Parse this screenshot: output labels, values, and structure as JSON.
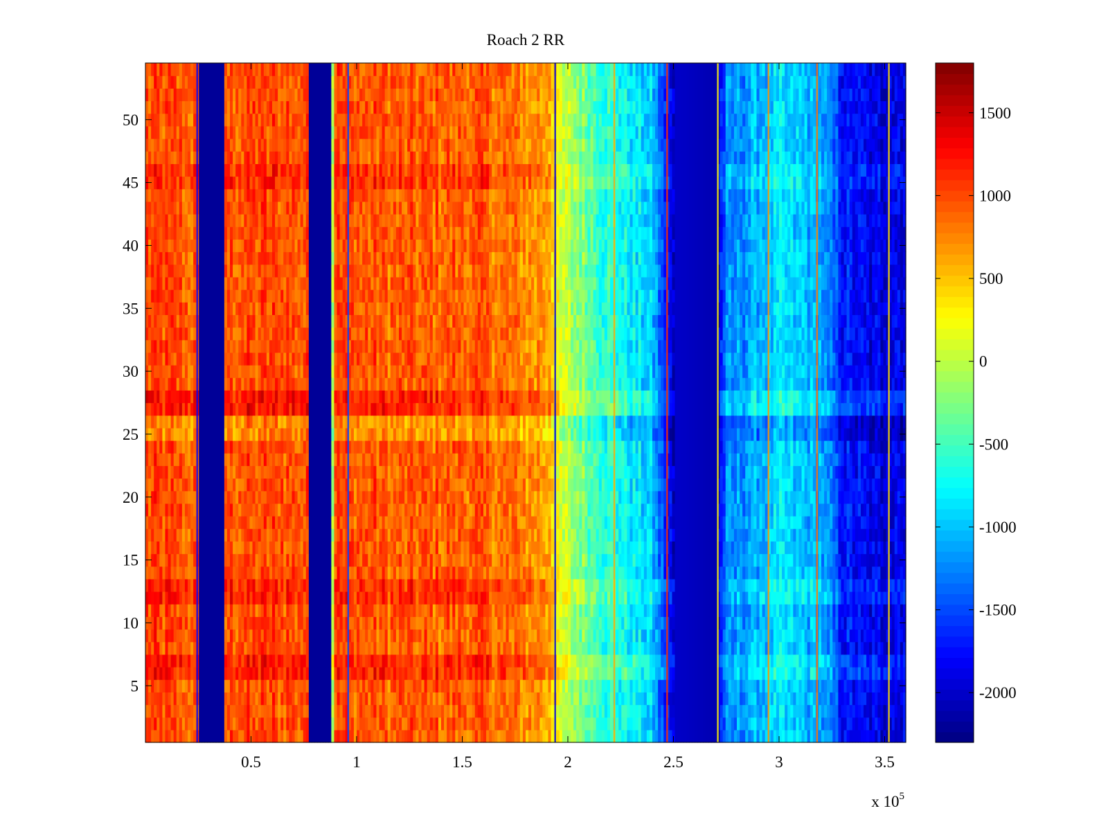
{
  "chart_data": {
    "type": "heatmap",
    "title": "Roach 2 RR",
    "xlabel": "",
    "ylabel": "",
    "x_range": [
      0,
      360000
    ],
    "y_range": [
      0.5,
      54.5
    ],
    "x_multiplier_label": "x 10",
    "x_multiplier_exponent": "5",
    "x_ticks": [
      {
        "value": 50000,
        "label": "0.5"
      },
      {
        "value": 100000,
        "label": "1"
      },
      {
        "value": 150000,
        "label": "1.5"
      },
      {
        "value": 200000,
        "label": "2"
      },
      {
        "value": 250000,
        "label": "2.5"
      },
      {
        "value": 300000,
        "label": "3"
      },
      {
        "value": 350000,
        "label": "3.5"
      }
    ],
    "y_ticks": [
      {
        "value": 5,
        "label": "5"
      },
      {
        "value": 10,
        "label": "10"
      },
      {
        "value": 15,
        "label": "15"
      },
      {
        "value": 20,
        "label": "20"
      },
      {
        "value": 25,
        "label": "25"
      },
      {
        "value": 30,
        "label": "30"
      },
      {
        "value": 35,
        "label": "35"
      },
      {
        "value": 40,
        "label": "40"
      },
      {
        "value": 45,
        "label": "45"
      },
      {
        "value": 50,
        "label": "50"
      }
    ],
    "colorbar": {
      "colormap": "jet",
      "range": [
        -2300,
        1800
      ],
      "ticks": [
        {
          "value": 1500,
          "label": "1500"
        },
        {
          "value": 1000,
          "label": "1000"
        },
        {
          "value": 500,
          "label": "500"
        },
        {
          "value": 0,
          "label": "0"
        },
        {
          "value": -500,
          "label": "-500"
        },
        {
          "value": -1000,
          "label": "-1000"
        },
        {
          "value": -1500,
          "label": "-1500"
        },
        {
          "value": -2000,
          "label": "-2000"
        }
      ]
    },
    "column_profile": {
      "x": [
        0,
        25000,
        26000,
        37000,
        38000,
        60000,
        77000,
        78000,
        88000,
        89000,
        120000,
        160000,
        192000,
        195000,
        215000,
        240000,
        250000,
        270000,
        275000,
        300000,
        320000,
        330000,
        345000,
        360000
      ],
      "value": [
        1000,
        900,
        -2200,
        -2200,
        950,
        1000,
        950,
        -2200,
        -2200,
        1000,
        900,
        900,
        650,
        100,
        -500,
        -1000,
        -2000,
        -2100,
        -1300,
        -900,
        -1100,
        -1700,
        -1900,
        -1800
      ]
    },
    "row_band_offsets": [
      {
        "y_from": 26.5,
        "y_to": 28.5,
        "offset": 250
      },
      {
        "y_from": 24.5,
        "y_to": 26.5,
        "offset": -220
      },
      {
        "y_from": 5.5,
        "y_to": 7.5,
        "offset": 220
      },
      {
        "y_from": 11.5,
        "y_to": 13.5,
        "offset": 180
      },
      {
        "y_from": 44.5,
        "y_to": 46.5,
        "offset": 150
      }
    ],
    "noise_amplitude": 450,
    "narrow_lines": [
      {
        "x": 24500,
        "value": -1800
      },
      {
        "x": 96000,
        "value": -1500
      },
      {
        "x": 194000,
        "value": -1900
      },
      {
        "x": 222000,
        "value": 600
      },
      {
        "x": 247000,
        "value": 1100
      },
      {
        "x": 271000,
        "value": 300
      },
      {
        "x": 295000,
        "value": 700
      },
      {
        "x": 318000,
        "value": 800
      },
      {
        "x": 352000,
        "value": 400
      }
    ],
    "grid": false
  }
}
